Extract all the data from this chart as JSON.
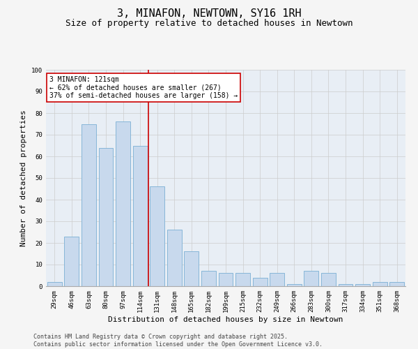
{
  "title": "3, MINAFON, NEWTOWN, SY16 1RH",
  "subtitle": "Size of property relative to detached houses in Newtown",
  "xlabel": "Distribution of detached houses by size in Newtown",
  "ylabel": "Number of detached properties",
  "categories": [
    "29sqm",
    "46sqm",
    "63sqm",
    "80sqm",
    "97sqm",
    "114sqm",
    "131sqm",
    "148sqm",
    "165sqm",
    "182sqm",
    "199sqm",
    "215sqm",
    "232sqm",
    "249sqm",
    "266sqm",
    "283sqm",
    "300sqm",
    "317sqm",
    "334sqm",
    "351sqm",
    "368sqm"
  ],
  "values": [
    2,
    23,
    75,
    64,
    76,
    65,
    46,
    26,
    16,
    7,
    6,
    6,
    4,
    6,
    1,
    7,
    6,
    1,
    1,
    2,
    2
  ],
  "bar_color": "#c8d9ed",
  "bar_edge_color": "#7aafd4",
  "highlight_index": 5,
  "highlight_line_color": "#cc0000",
  "annotation_text": "3 MINAFON: 121sqm\n← 62% of detached houses are smaller (267)\n37% of semi-detached houses are larger (158) →",
  "annotation_box_color": "#ffffff",
  "annotation_box_edge_color": "#cc0000",
  "ylim": [
    0,
    100
  ],
  "yticks": [
    0,
    10,
    20,
    30,
    40,
    50,
    60,
    70,
    80,
    90,
    100
  ],
  "grid_color": "#cccccc",
  "bg_color": "#e8eef5",
  "fig_bg_color": "#f5f5f5",
  "footer": "Contains HM Land Registry data © Crown copyright and database right 2025.\nContains public sector information licensed under the Open Government Licence v3.0.",
  "title_fontsize": 11,
  "subtitle_fontsize": 9,
  "axis_label_fontsize": 8,
  "tick_fontsize": 6.5,
  "annotation_fontsize": 7,
  "footer_fontsize": 6
}
